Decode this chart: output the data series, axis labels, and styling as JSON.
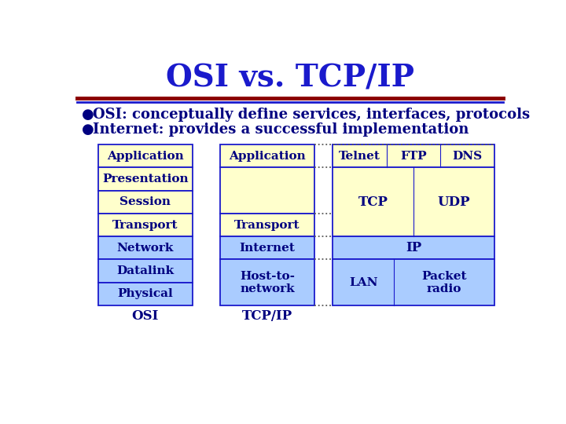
{
  "title": "OSI vs. TCP/IP",
  "title_fontsize": 28,
  "title_color": "#1a1acc",
  "bullet1": "OSI: conceptually define services, interfaces, protocols",
  "bullet2": "Internet: provides a successful implementation",
  "bullet_fontsize": 13,
  "bullet_color": "#000080",
  "bg_color": "#ffffff",
  "sep_color1": "#8b0000",
  "sep_color2": "#1a1acc",
  "osi_layers": [
    "Application",
    "Presentation",
    "Session",
    "Transport",
    "Network",
    "Datalink",
    "Physical"
  ],
  "osi_colors": [
    "#ffffcc",
    "#ffffcc",
    "#ffffcc",
    "#ffffcc",
    "#aaccff",
    "#aaccff",
    "#aaccff"
  ],
  "tcpip_layers_info": [
    {
      "label": "Application",
      "color": "#ffffcc",
      "rows": 1
    },
    {
      "label": "",
      "color": "#ffffcc",
      "rows": 2
    },
    {
      "label": "Transport",
      "color": "#ffffcc",
      "rows": 1
    },
    {
      "label": "Internet",
      "color": "#aaccff",
      "rows": 1
    },
    {
      "label": "Host-to-\nnetwork",
      "color": "#aaccff",
      "rows": 2
    }
  ],
  "proto1_labels": [
    "Telnet",
    "FTP",
    "DNS"
  ],
  "proto1_color": "#ffffcc",
  "proto2_labels": [
    "TCP",
    "UDP"
  ],
  "proto2_color": "#ffffcc",
  "proto3_label": "IP",
  "proto3_color": "#aaccff",
  "proto4a_label": "LAN",
  "proto4b_label": "Packet\nradio",
  "proto4_color": "#aaccff",
  "box_edge_color": "#1a1acc",
  "box_text_color": "#000080",
  "label_osi": "OSI",
  "label_tcpip": "TCP/IP",
  "label_fontsize": 12,
  "layer_fontsize": 11,
  "proto_fontsize": 11
}
